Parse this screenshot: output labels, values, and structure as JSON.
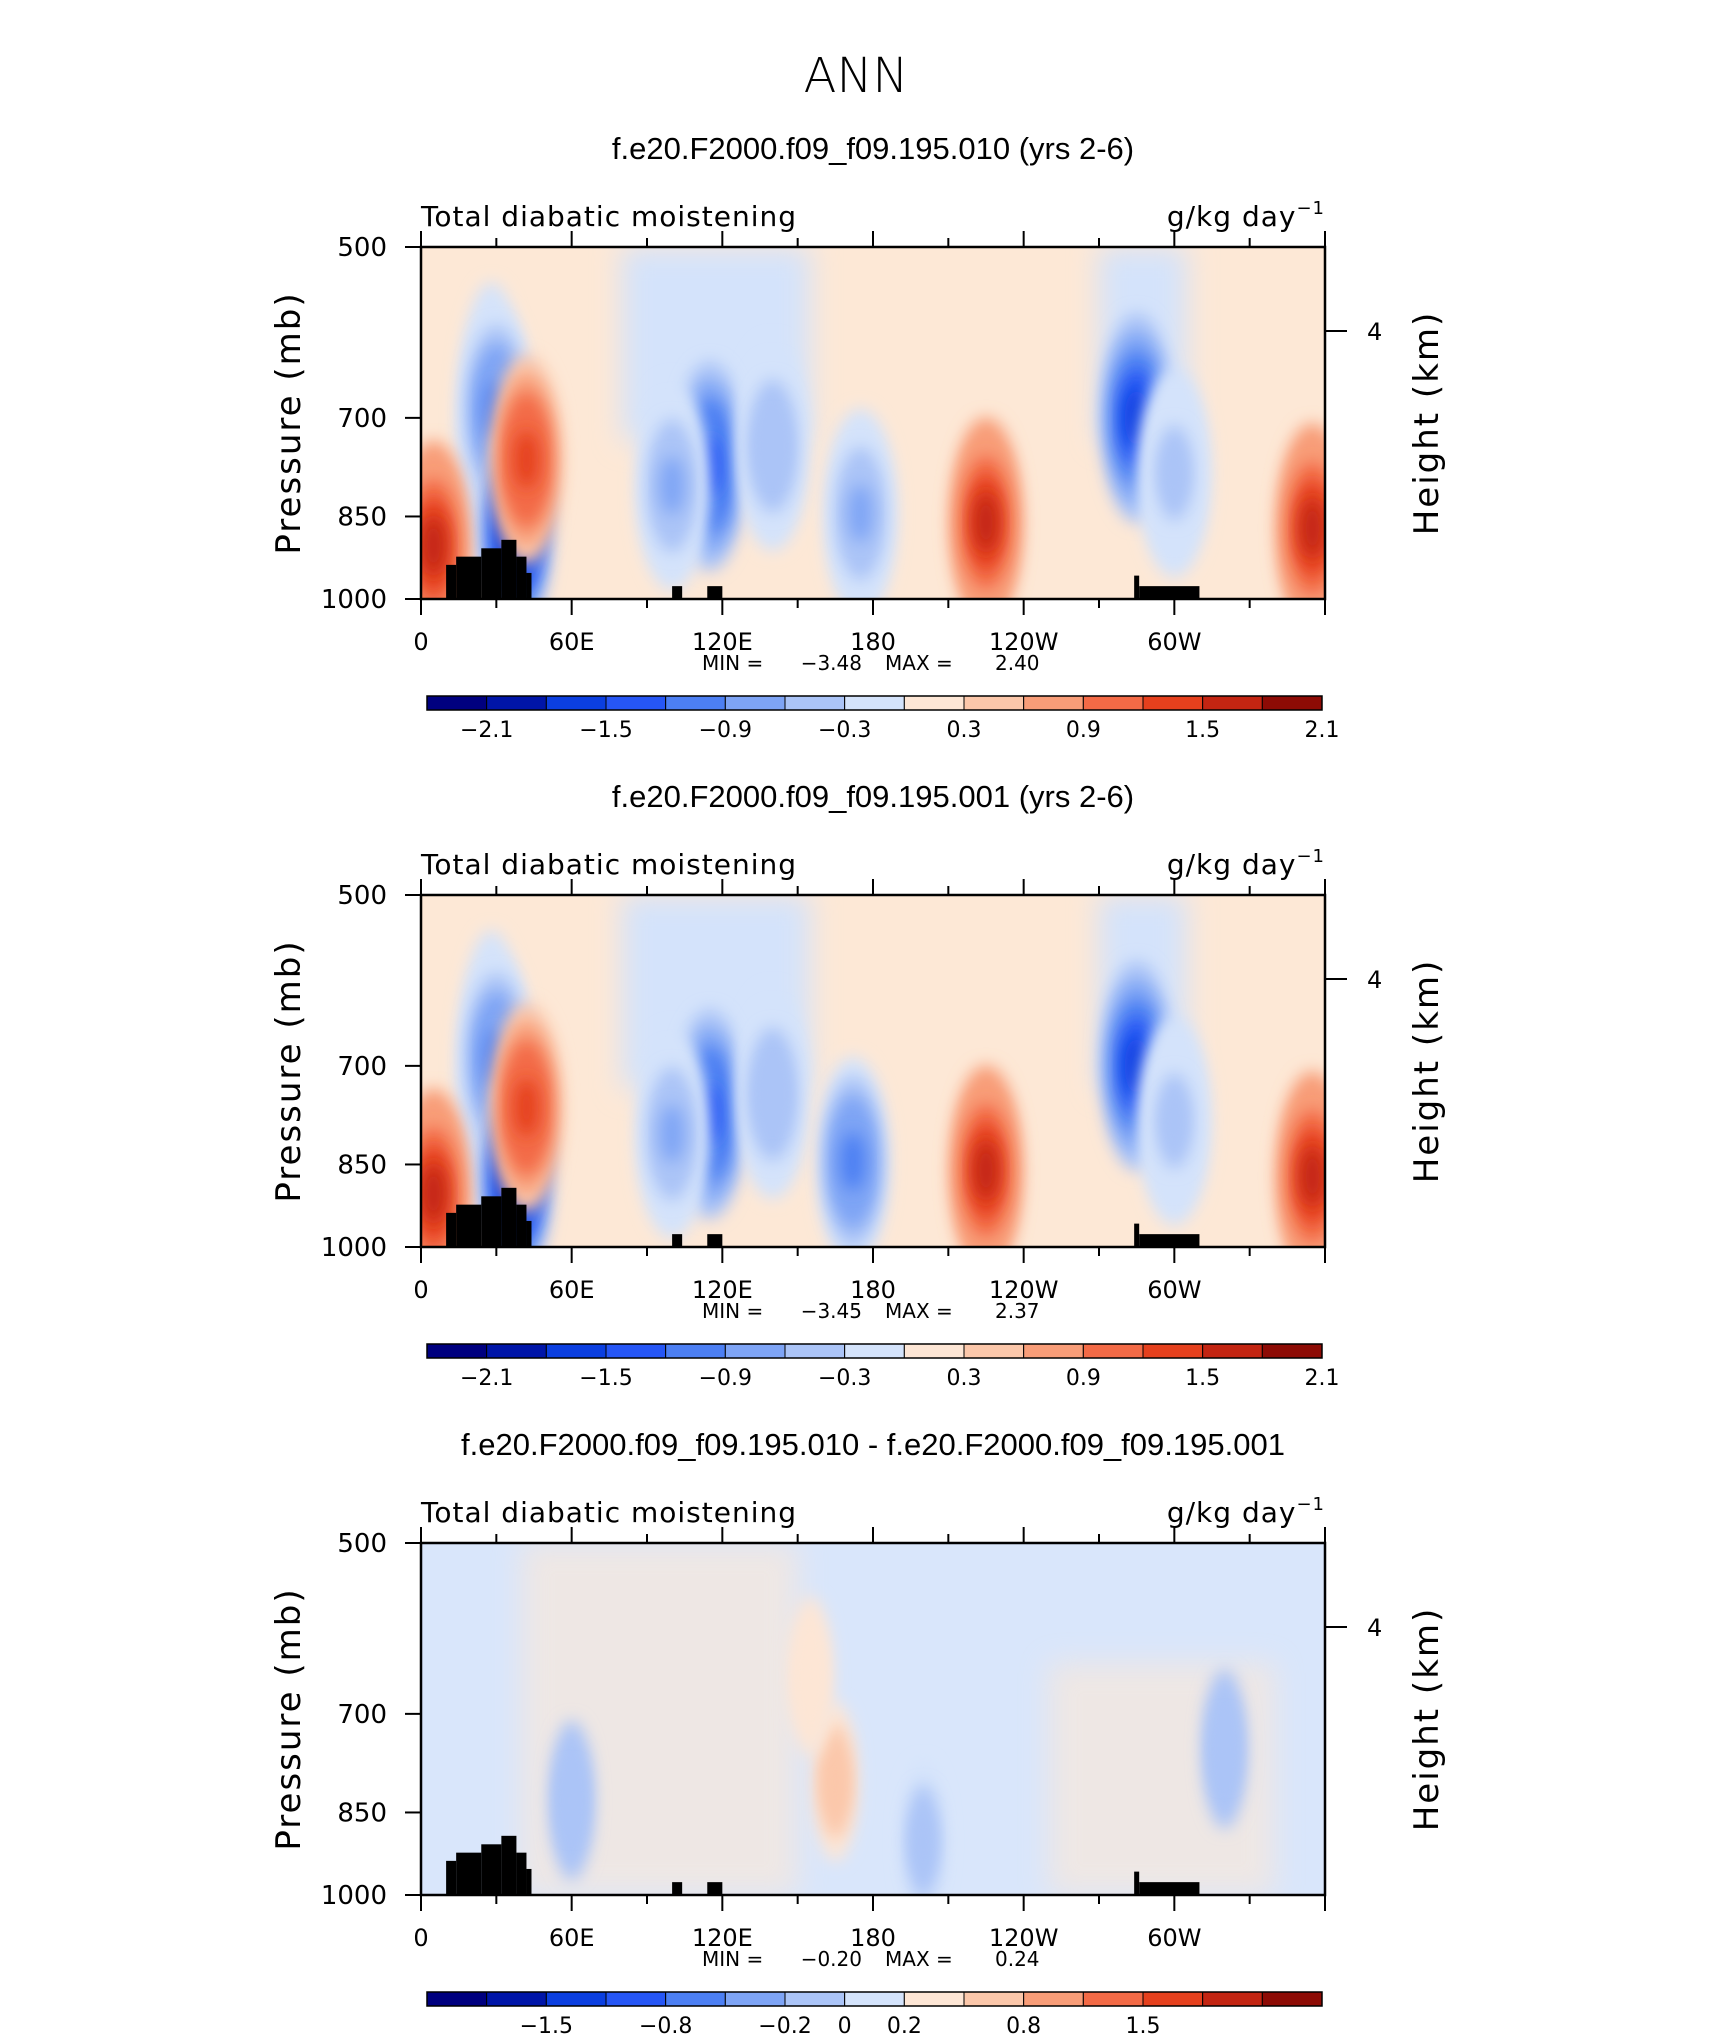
{
  "figure": {
    "title": "ANN"
  },
  "chart_data": [
    {
      "type": "heatmap",
      "title": "f.e20.F2000.f09_f09.195.010 (yrs 2-6)",
      "left_string": "Total diabatic moistening",
      "units": {
        "base": "g/kg day",
        "exponent": "−1"
      },
      "ylabel": "Pressure (mb)",
      "ylabel_right": "Height (km)",
      "x_ticks": [
        "0",
        "60E",
        "120E",
        "180",
        "120W",
        "60W"
      ],
      "y_ticks": [
        "500",
        "700",
        "850",
        "1000"
      ],
      "y_right_ticks": [
        "4"
      ],
      "xlim": [
        0,
        360
      ],
      "ylim": [
        1000,
        500
      ],
      "yscale": "log",
      "stats": {
        "min_label": "MIN =",
        "min": "−3.48",
        "max_label": "MAX =",
        "max": "2.40"
      },
      "colorbar_labels": [
        "−2.1",
        "−1.5",
        "−0.9",
        "−0.3",
        "0.3",
        "0.9",
        "1.5",
        "2.1"
      ],
      "features": [
        {
          "lon": 30,
          "p": 690,
          "value": -1.5
        },
        {
          "lon": 38,
          "p": 870,
          "value": -2.5
        },
        {
          "lon": 42,
          "p": 760,
          "value": 1.5
        },
        {
          "lon": 5,
          "p": 900,
          "value": 1.8
        },
        {
          "lon": 115,
          "p": 770,
          "value": -2.0
        },
        {
          "lon": 100,
          "p": 800,
          "value": -1.2
        },
        {
          "lon": 140,
          "p": 740,
          "value": -1.0
        },
        {
          "lon": 175,
          "p": 845,
          "value": -1.2
        },
        {
          "lon": 225,
          "p": 860,
          "value": 1.8
        },
        {
          "lon": 285,
          "p": 700,
          "value": -2.1
        },
        {
          "lon": 300,
          "p": 780,
          "value": -0.9
        },
        {
          "lon": 355,
          "p": 870,
          "value": 1.8
        }
      ]
    },
    {
      "type": "heatmap",
      "title": "f.e20.F2000.f09_f09.195.001 (yrs 2-6)",
      "left_string": "Total diabatic moistening",
      "units": {
        "base": "g/kg day",
        "exponent": "−1"
      },
      "ylabel": "Pressure (mb)",
      "ylabel_right": "Height (km)",
      "x_ticks": [
        "0",
        "60E",
        "120E",
        "180",
        "120W",
        "60W"
      ],
      "y_ticks": [
        "500",
        "700",
        "850",
        "1000"
      ],
      "y_right_ticks": [
        "4"
      ],
      "xlim": [
        0,
        360
      ],
      "ylim": [
        1000,
        500
      ],
      "yscale": "log",
      "stats": {
        "min_label": "MIN =",
        "min": "−3.45",
        "max_label": "MAX =",
        "max": "2.37"
      },
      "colorbar_labels": [
        "−2.1",
        "−1.5",
        "−0.9",
        "−0.3",
        "0.3",
        "0.9",
        "1.5",
        "2.1"
      ],
      "features": [
        {
          "lon": 30,
          "p": 690,
          "value": -1.5
        },
        {
          "lon": 38,
          "p": 870,
          "value": -2.5
        },
        {
          "lon": 42,
          "p": 760,
          "value": 1.5
        },
        {
          "lon": 5,
          "p": 900,
          "value": 1.8
        },
        {
          "lon": 115,
          "p": 770,
          "value": -2.0
        },
        {
          "lon": 100,
          "p": 800,
          "value": -1.2
        },
        {
          "lon": 140,
          "p": 740,
          "value": -1.0
        },
        {
          "lon": 172,
          "p": 845,
          "value": -1.5
        },
        {
          "lon": 225,
          "p": 860,
          "value": 1.8
        },
        {
          "lon": 285,
          "p": 700,
          "value": -2.1
        },
        {
          "lon": 300,
          "p": 780,
          "value": -0.9
        },
        {
          "lon": 355,
          "p": 870,
          "value": 1.8
        }
      ]
    },
    {
      "type": "heatmap",
      "title": "f.e20.F2000.f09_f09.195.010 - f.e20.F2000.f09_f09.195.001",
      "left_string": "Total diabatic moistening",
      "units": {
        "base": "g/kg day",
        "exponent": "−1"
      },
      "ylabel": "Pressure (mb)",
      "ylabel_right": "Height (km)",
      "x_ticks": [
        "0",
        "60E",
        "120E",
        "180",
        "120W",
        "60W"
      ],
      "y_ticks": [
        "500",
        "700",
        "850",
        "1000"
      ],
      "y_right_ticks": [
        "4"
      ],
      "xlim": [
        0,
        360
      ],
      "ylim": [
        1000,
        500
      ],
      "yscale": "log",
      "stats": {
        "min_label": "MIN =",
        "min": "−0.20",
        "max_label": "MAX =",
        "max": "0.24"
      },
      "colorbar_labels": [
        "−1.5",
        "−0.8",
        "−0.2",
        "0",
        "0.2",
        "0.8",
        "1.5"
      ],
      "features": [
        {
          "lon": 165,
          "p": 800,
          "value": 0.24
        },
        {
          "lon": 155,
          "p": 650,
          "value": 0.1
        },
        {
          "lon": 60,
          "p": 830,
          "value": -0.1
        },
        {
          "lon": 200,
          "p": 900,
          "value": -0.05
        },
        {
          "lon": 320,
          "p": 750,
          "value": -0.08
        }
      ]
    }
  ],
  "colors": {
    "palette": [
      "#00007f",
      "#0015a8",
      "#0b3fe0",
      "#2656f5",
      "#4c7ff3",
      "#7ea4f5",
      "#abc4f7",
      "#d4e3fb",
      "#fde6d5",
      "#fbc7aa",
      "#f89d78",
      "#f36a46",
      "#e5401d",
      "#c32512",
      "#8d0b05"
    ],
    "neutral_pos": "#fde8d6",
    "neutral_neg": "#d9e6fb",
    "topography": "#000000"
  }
}
